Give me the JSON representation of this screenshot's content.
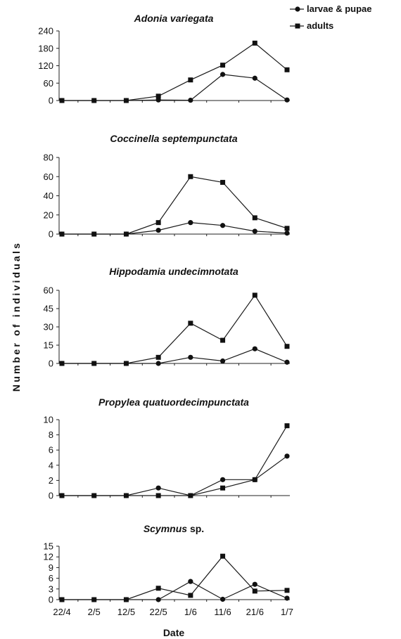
{
  "chart_data": [
    {
      "type": "line",
      "title": "Adonia variegata",
      "categories": [
        "22/4",
        "2/5",
        "12/5",
        "22/5",
        "1/6",
        "11/6",
        "21/6",
        "1/7"
      ],
      "ylim": [
        0,
        240
      ],
      "yticks": [
        0,
        60,
        120,
        180,
        240
      ],
      "series": [
        {
          "name": "larvae & pupae",
          "marker": "circle",
          "values": [
            0,
            0,
            0,
            2,
            1,
            90,
            77,
            2
          ]
        },
        {
          "name": "adults",
          "marker": "square",
          "values": [
            0,
            0,
            0,
            15,
            71,
            122,
            198,
            106
          ]
        }
      ]
    },
    {
      "type": "line",
      "title": "Coccinella septempunctata",
      "categories": [
        "22/4",
        "2/5",
        "12/5",
        "22/5",
        "1/6",
        "11/6",
        "21/6",
        "1/7"
      ],
      "ylim": [
        0,
        80
      ],
      "yticks": [
        0,
        20,
        40,
        60,
        80
      ],
      "series": [
        {
          "name": "larvae & pupae",
          "marker": "circle",
          "values": [
            0,
            0,
            0,
            4,
            12,
            9,
            3,
            1
          ]
        },
        {
          "name": "adults",
          "marker": "square",
          "values": [
            0,
            0,
            0,
            12,
            60,
            54,
            17,
            6
          ]
        }
      ]
    },
    {
      "type": "line",
      "title": "Hippodamia undecimnotata",
      "categories": [
        "22/4",
        "2/5",
        "12/5",
        "22/5",
        "1/6",
        "11/6",
        "21/6",
        "1/7"
      ],
      "ylim": [
        0,
        60
      ],
      "yticks": [
        0,
        15,
        30,
        45,
        60
      ],
      "series": [
        {
          "name": "larvae & pupae",
          "marker": "circle",
          "values": [
            0,
            0,
            0,
            0,
            5,
            2,
            12,
            1
          ]
        },
        {
          "name": "adults",
          "marker": "square",
          "values": [
            0,
            0,
            0,
            5,
            33,
            19,
            56,
            14
          ]
        }
      ]
    },
    {
      "type": "line",
      "title": "Propylea quatuordecimpunctata",
      "categories": [
        "22/4",
        "2/5",
        "12/5",
        "22/5",
        "1/6",
        "11/6",
        "21/6",
        "1/7"
      ],
      "ylim": [
        0,
        10
      ],
      "yticks": [
        0,
        2,
        4,
        6,
        8,
        10
      ],
      "series": [
        {
          "name": "larvae & pupae",
          "marker": "circle",
          "values": [
            0,
            0,
            0,
            1,
            0,
            2.1,
            2.1,
            5.2
          ]
        },
        {
          "name": "adults",
          "marker": "square",
          "values": [
            0,
            0,
            0,
            0,
            0,
            1,
            2.1,
            9.2
          ]
        }
      ]
    },
    {
      "type": "line",
      "title": "Scymnus",
      "title_suffix": " sp.",
      "categories": [
        "22/4",
        "2/5",
        "12/5",
        "22/5",
        "1/6",
        "11/6",
        "21/6",
        "1/7"
      ],
      "ylim": [
        0,
        15
      ],
      "yticks": [
        0,
        3,
        6,
        9,
        12,
        15
      ],
      "show_xtick_labels": true,
      "series": [
        {
          "name": "larvae & pupae",
          "marker": "circle",
          "values": [
            0,
            0,
            0,
            0,
            5.1,
            0.1,
            4.3,
            0.4
          ]
        },
        {
          "name": "adults",
          "marker": "square",
          "values": [
            0,
            0,
            0,
            3.2,
            1.2,
            12.2,
            2.4,
            2.6
          ]
        }
      ]
    }
  ],
  "legend": {
    "position": "top-right",
    "items": [
      "larvae & pupae",
      "adults"
    ]
  },
  "ylabel": "Number of individuals",
  "xlabel": "Date"
}
